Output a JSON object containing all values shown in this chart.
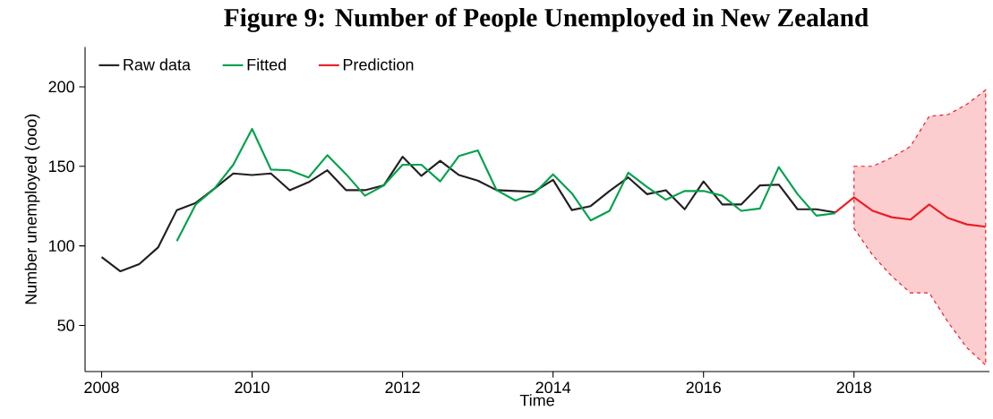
{
  "chart_data": {
    "type": "line",
    "title": "Figure 9: Number of People Unemployed in New Zealand",
    "xlabel": "Time",
    "ylabel": "Number unemployed (ooo)",
    "xlim": [
      2007.78,
      2019.8
    ],
    "ylim": [
      21,
      225
    ],
    "xticks": [
      2008,
      2010,
      2012,
      2014,
      2016,
      2018
    ],
    "yticks": [
      50,
      100,
      150,
      200
    ],
    "grid": false,
    "legend": "top left",
    "marker": "none",
    "line_style": "solid",
    "series": [
      {
        "name": "Raw data",
        "color": "#231f20",
        "x": [
          2008,
          2008.25,
          2008.5,
          2008.75,
          2009,
          2009.25,
          2009.5,
          2009.75,
          2010,
          2010.25,
          2010.5,
          2010.75,
          2011,
          2011.25,
          2011.5,
          2011.75,
          2012,
          2012.25,
          2012.5,
          2012.75,
          2013,
          2013.25,
          2013.5,
          2013.75,
          2014,
          2014.25,
          2014.5,
          2014.75,
          2015,
          2015.25,
          2015.5,
          2015.75,
          2016,
          2016.25,
          2016.5,
          2016.75,
          2017,
          2017.25,
          2017.5,
          2017.75
        ],
        "values": [
          93,
          84,
          88.5,
          99,
          122.5,
          127,
          136,
          145.5,
          144.5,
          145.5,
          135,
          140,
          147.5,
          135,
          135,
          138,
          156,
          144,
          153.5,
          144.5,
          141,
          135,
          134.5,
          134,
          141.5,
          122.5,
          125,
          134.5,
          143,
          132.5,
          135,
          123,
          140.5,
          126,
          126,
          138,
          138.5,
          123,
          123,
          121
        ]
      },
      {
        "name": "Fitted",
        "color": "#00a14b",
        "x": [
          2009,
          2009.25,
          2009.5,
          2009.75,
          2010,
          2010.25,
          2010.5,
          2010.75,
          2011,
          2011.25,
          2011.5,
          2011.75,
          2012,
          2012.25,
          2012.5,
          2012.75,
          2013,
          2013.25,
          2013.5,
          2013.75,
          2014,
          2014.25,
          2014.5,
          2014.75,
          2015,
          2015.25,
          2015.5,
          2015.75,
          2016,
          2016.25,
          2016.5,
          2016.75,
          2017,
          2017.25,
          2017.5,
          2017.75
        ],
        "values": [
          103,
          126,
          136,
          151,
          173.5,
          148,
          147.5,
          143,
          157,
          145,
          131.5,
          138,
          151,
          151,
          140.5,
          156.5,
          160,
          135,
          128.5,
          133,
          145,
          133,
          116,
          122,
          146,
          137,
          129,
          134.5,
          134.5,
          131.5,
          122,
          123.5,
          149.5,
          132.5,
          119,
          120.5
        ]
      },
      {
        "name": "Prediction",
        "color": "#ed1c24",
        "x": [
          2017.75,
          2018,
          2018.25,
          2018.5,
          2018.75,
          2019,
          2019.25,
          2019.5,
          2019.75
        ],
        "values": [
          121,
          130.5,
          122,
          118,
          116.5,
          126,
          117.5,
          113.5,
          112
        ],
        "lower": [
          null,
          111,
          94,
          81,
          70.5,
          70.5,
          52,
          36,
          25
        ],
        "upper": [
          null,
          150,
          150,
          155.5,
          162.5,
          181.5,
          182.5,
          189,
          198
        ]
      }
    ]
  }
}
